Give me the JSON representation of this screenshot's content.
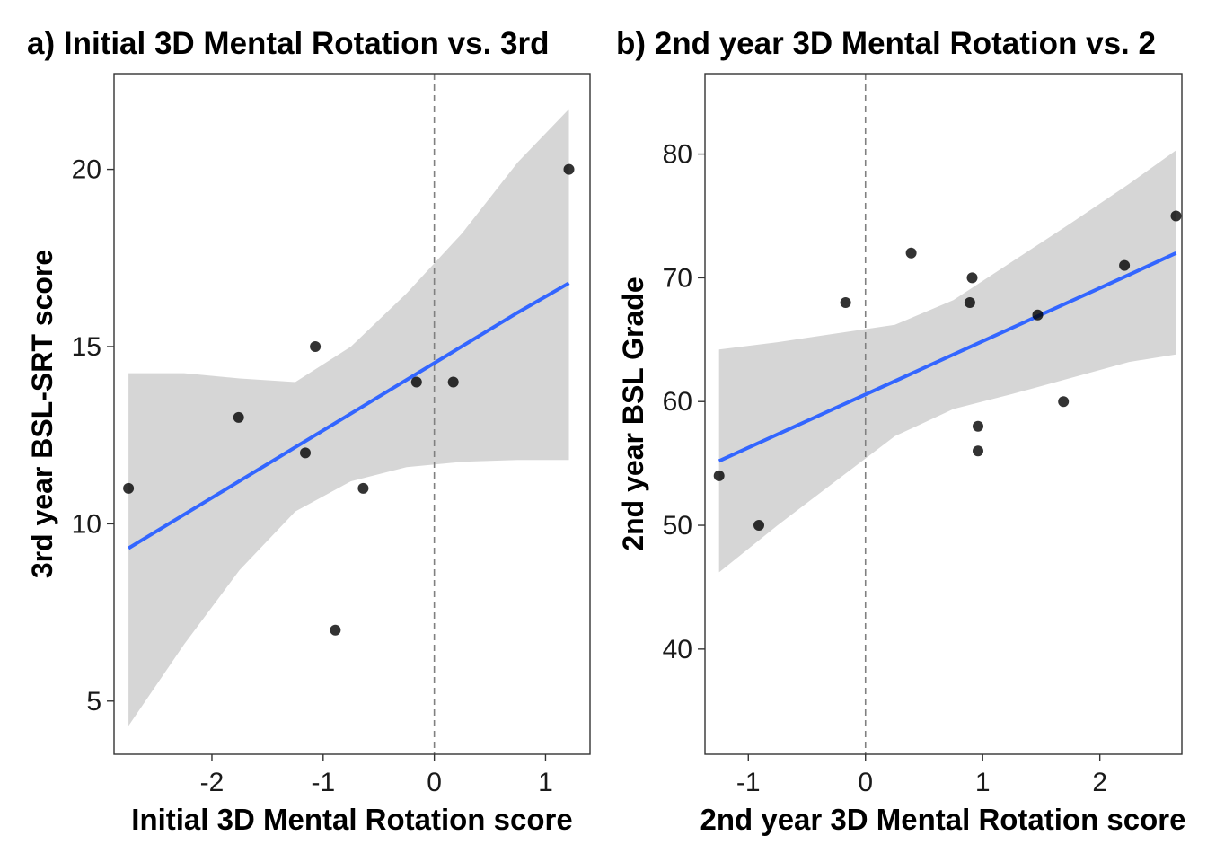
{
  "colors": {
    "ribbon": "#d6d6d6",
    "trend_line": "#3366ff",
    "points": "#000000",
    "reference_line": "#808080"
  },
  "chart_data": [
    {
      "type": "scatter",
      "title": "a) Initial 3D Mental Rotation vs. 3rd",
      "xlabel": "Initial 3D Mental Rotation score",
      "ylabel": "3rd year BSL-SRT score",
      "xlim": [
        -2.88,
        1.4
      ],
      "ylim": [
        3.5,
        22.7
      ],
      "x_ticks": [
        -2,
        -1,
        0,
        1
      ],
      "x_tick_labels": [
        "-2",
        "-1",
        "0",
        "1"
      ],
      "y_ticks": [
        5,
        10,
        15,
        20
      ],
      "y_tick_labels": [
        "5",
        "10",
        "15",
        "20"
      ],
      "reference_vline": 0,
      "grid": false,
      "points": [
        {
          "x": -2.75,
          "y": 11
        },
        {
          "x": -1.76,
          "y": 13
        },
        {
          "x": -1.16,
          "y": 12
        },
        {
          "x": -1.07,
          "y": 15
        },
        {
          "x": -0.89,
          "y": 7
        },
        {
          "x": -0.64,
          "y": 11
        },
        {
          "x": -0.16,
          "y": 14
        },
        {
          "x": 0.17,
          "y": 14
        },
        {
          "x": 1.21,
          "y": 20
        }
      ],
      "fit": {
        "x": [
          -2.75,
          -2.25,
          -1.75,
          -1.25,
          -0.75,
          -0.25,
          0.25,
          0.75,
          1.21
        ],
        "y": [
          9.31,
          10.26,
          11.21,
          12.16,
          13.11,
          14.06,
          15.01,
          15.96,
          16.79
        ],
        "lower": [
          4.3,
          6.6,
          8.7,
          10.35,
          11.2,
          11.6,
          11.75,
          11.8,
          11.8
        ],
        "upper": [
          14.25,
          14.25,
          14.1,
          14.0,
          15.0,
          16.5,
          18.2,
          20.2,
          21.7
        ]
      }
    },
    {
      "type": "scatter",
      "title": "b) 2nd year 3D Mental Rotation vs. 2",
      "xlabel": "2nd year 3D Mental Rotation score",
      "ylabel": "2nd year BSL Grade",
      "xlim": [
        -1.37,
        2.7
      ],
      "ylim": [
        31.5,
        86.5
      ],
      "x_ticks": [
        -1,
        0,
        1,
        2
      ],
      "x_tick_labels": [
        "-1",
        "0",
        "1",
        "2"
      ],
      "y_ticks": [
        40,
        50,
        60,
        70,
        80
      ],
      "y_tick_labels": [
        "40",
        "50",
        "60",
        "70",
        "80"
      ],
      "reference_vline": 0,
      "grid": false,
      "points": [
        {
          "x": -1.25,
          "y": 54
        },
        {
          "x": -0.91,
          "y": 50
        },
        {
          "x": -0.17,
          "y": 68
        },
        {
          "x": 0.39,
          "y": 72
        },
        {
          "x": 0.89,
          "y": 68
        },
        {
          "x": 0.91,
          "y": 70
        },
        {
          "x": 0.96,
          "y": 58
        },
        {
          "x": 0.96,
          "y": 56
        },
        {
          "x": 1.47,
          "y": 67
        },
        {
          "x": 1.69,
          "y": 60
        },
        {
          "x": 2.21,
          "y": 71
        },
        {
          "x": 2.65,
          "y": 75
        }
      ],
      "fit": {
        "x": [
          -1.25,
          -0.75,
          -0.25,
          0.25,
          0.75,
          1.25,
          1.75,
          2.25,
          2.65
        ],
        "y": [
          55.2,
          57.35,
          59.5,
          61.65,
          63.8,
          65.95,
          68.1,
          70.25,
          72.0
        ],
        "lower": [
          46.2,
          50.0,
          53.6,
          57.2,
          59.4,
          60.6,
          61.9,
          63.2,
          63.8
        ],
        "upper": [
          64.2,
          64.8,
          65.5,
          66.2,
          68.2,
          71.3,
          74.4,
          77.6,
          80.3
        ]
      }
    }
  ]
}
